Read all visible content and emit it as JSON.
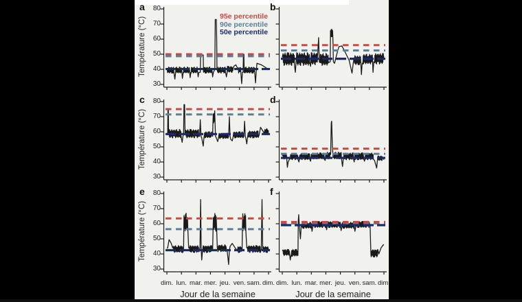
{
  "figure": {
    "panel_letters": [
      "a",
      "b",
      "c",
      "d",
      "e",
      "f"
    ],
    "legend": {
      "items": [
        {
          "label": "95e percentile",
          "color": "#c64a42"
        },
        {
          "label": "90e percentile",
          "color": "#5d7e97"
        },
        {
          "label": "50e percentile",
          "color": "#1c2a66"
        }
      ]
    },
    "axes": {
      "y_label": "Température (°C)",
      "x_label": "Jour de la semaine",
      "y_ticks": [
        80,
        70,
        60,
        50,
        40,
        30
      ],
      "x_tick_labels": [
        "dim.",
        "lun.",
        "mar.",
        "mer.",
        "jeu.",
        "ven.",
        "sam.",
        "dim."
      ],
      "ylim": [
        30,
        80
      ]
    },
    "colors": {
      "p95": "#c64a42",
      "p90": "#5d7e97",
      "p50": "#1c2a66",
      "series": "#1a1a1a",
      "axis": "#1a1a1a",
      "figure_bg": "#f1f1ee",
      "surround": "#000000"
    }
  },
  "chart_data": [
    {
      "id": "a",
      "label": "a",
      "type": "line",
      "ylim": [
        30,
        80
      ],
      "x_unit": "day of week (dim. to dim.)",
      "percentiles": {
        "p95": 50,
        "p90": 48.7,
        "p50": 40.2
      },
      "series": [
        [
          0.0,
          40
        ],
        {
          "b": [
            0.02,
            0.5,
            37.5,
            41.5
          ]
        },
        [
          0.55,
          33.5
        ],
        [
          0.6,
          38
        ],
        {
          "b": [
            0.62,
            1.02,
            37.5,
            41.5
          ]
        },
        [
          1.07,
          34
        ],
        [
          1.12,
          38
        ],
        {
          "b": [
            1.14,
            1.55,
            37.5,
            41.5
          ]
        },
        [
          1.6,
          34.5
        ],
        [
          1.65,
          38
        ],
        {
          "b": [
            1.67,
            2.1,
            37.5,
            41.5
          ]
        },
        [
          2.15,
          35
        ],
        [
          2.2,
          38
        ],
        [
          2.3,
          38
        ],
        [
          2.32,
          49.5
        ],
        [
          2.5,
          49.5
        ],
        [
          2.52,
          38
        ],
        {
          "b": [
            2.54,
            3.1,
            37.5,
            41.5
          ]
        },
        [
          3.15,
          35
        ],
        [
          3.2,
          38
        ],
        [
          3.3,
          40
        ],
        [
          3.33,
          73
        ],
        [
          3.4,
          73
        ],
        [
          3.43,
          60
        ],
        [
          3.45,
          40
        ],
        {
          "b": [
            3.5,
            4.05,
            37.5,
            41.5
          ]
        },
        [
          4.1,
          35
        ],
        [
          4.15,
          38
        ],
        {
          "b": [
            4.17,
            4.55,
            38,
            42
          ]
        },
        [
          4.6,
          42
        ],
        [
          4.75,
          43
        ],
        [
          4.9,
          40
        ],
        {
          "b": [
            4.92,
            5.1,
            37.5,
            41.5
          ]
        },
        [
          5.15,
          30.5
        ],
        [
          5.2,
          38
        ],
        [
          5.25,
          38
        ],
        [
          5.27,
          50
        ],
        [
          5.3,
          50
        ],
        [
          5.32,
          38
        ],
        {
          "b": [
            5.35,
            6.05,
            37.5,
            41.5
          ]
        },
        [
          6.1,
          31
        ],
        [
          6.15,
          38
        ],
        [
          6.2,
          44
        ],
        [
          6.5,
          43
        ],
        [
          7.0,
          40
        ]
      ]
    },
    {
      "id": "b",
      "label": "b",
      "type": "line",
      "ylim": [
        30,
        80
      ],
      "x_unit": "day of week (dim. to dim.)",
      "percentiles": {
        "p95": 56,
        "p90": 52.5,
        "p50": 47
      },
      "series": [
        [
          0,
          48
        ],
        {
          "b": [
            0.05,
            0.85,
            42.5,
            51
          ]
        },
        [
          0.9,
          38
        ],
        [
          0.95,
          45
        ],
        {
          "b": [
            1.0,
            1.9,
            42.5,
            51
          ]
        },
        [
          1.95,
          42
        ],
        {
          "b": [
            2.0,
            2.45,
            43,
            51
          ]
        },
        [
          2.5,
          61
        ],
        [
          2.55,
          45
        ],
        {
          "b": [
            2.6,
            3.2,
            42.5,
            50.5
          ]
        },
        [
          3.3,
          45
        ],
        {
          "b": [
            3.32,
            3.5,
            60,
            67
          ]
        },
        [
          3.52,
          45
        ],
        [
          3.6,
          44
        ],
        [
          3.75,
          50
        ],
        [
          3.9,
          55
        ],
        [
          4.1,
          55.5
        ],
        [
          4.3,
          52
        ],
        [
          4.5,
          48
        ],
        [
          4.6,
          46
        ],
        [
          4.8,
          37.5
        ],
        [
          4.9,
          45
        ],
        {
          "b": [
            4.95,
            5.4,
            43,
            49
          ]
        },
        [
          5.45,
          36.5
        ],
        [
          5.5,
          44
        ],
        {
          "b": [
            5.55,
            6.2,
            43.5,
            50
          ]
        },
        [
          6.25,
          38
        ],
        [
          6.3,
          45
        ],
        {
          "b": [
            6.35,
            6.95,
            43.5,
            50.5
          ]
        },
        [
          7,
          47
        ]
      ]
    },
    {
      "id": "c",
      "label": "c",
      "type": "line",
      "ylim": [
        30,
        80
      ],
      "x_unit": "day of week (dim. to dim.)",
      "percentiles": {
        "p95": 75,
        "p90": 71.5,
        "p50": 58.5
      },
      "series": [
        [
          0,
          58
        ],
        [
          0.05,
          58
        ],
        [
          0.07,
          75
        ],
        [
          0.1,
          75
        ],
        [
          0.12,
          58
        ],
        {
          "b": [
            0.14,
            1.0,
            56,
            61.5
          ]
        },
        [
          1.05,
          53
        ],
        [
          1.1,
          57
        ],
        [
          1.15,
          58
        ],
        [
          1.18,
          78
        ],
        [
          1.22,
          78
        ],
        [
          1.25,
          58
        ],
        {
          "b": [
            1.3,
            2.2,
            56,
            61.5
          ]
        },
        [
          2.25,
          57
        ],
        [
          2.3,
          68
        ],
        [
          2.35,
          57
        ],
        [
          2.4,
          56
        ],
        [
          2.5,
          50.5
        ],
        [
          2.55,
          56
        ],
        {
          "b": [
            2.6,
            3.1,
            56,
            60
          ]
        },
        [
          3.15,
          57
        ],
        {
          "b": [
            3.17,
            3.32,
            65,
            74
          ]
        },
        [
          3.35,
          57
        ],
        [
          3.4,
          56
        ],
        [
          3.5,
          53.5
        ],
        [
          3.55,
          56
        ],
        {
          "b": [
            3.6,
            4.2,
            55.5,
            59
          ]
        },
        [
          4.25,
          57
        ],
        [
          4.3,
          70
        ],
        [
          4.35,
          57
        ],
        [
          4.4,
          55
        ],
        [
          4.5,
          54
        ],
        [
          4.55,
          56
        ],
        {
          "b": [
            4.6,
            5.25,
            56,
            60
          ]
        },
        [
          5.3,
          57
        ],
        [
          5.35,
          67
        ],
        [
          5.4,
          57
        ],
        [
          5.45,
          55
        ],
        [
          5.5,
          52
        ],
        [
          5.55,
          56
        ],
        {
          "b": [
            5.6,
            6.3,
            56,
            60.5
          ]
        },
        [
          6.35,
          58
        ],
        [
          6.45,
          63
        ],
        [
          6.7,
          59
        ],
        {
          "b": [
            6.75,
            7,
            58,
            62
          ]
        }
      ]
    },
    {
      "id": "d",
      "label": "d",
      "type": "line",
      "ylim": [
        30,
        80
      ],
      "x_unit": "day of week (dim. to dim.)",
      "percentiles": {
        "p95": 48.8,
        "p90": 45.4,
        "p50": 42.7
      },
      "series": [
        [
          0,
          44
        ],
        {
          "b": [
            0.05,
            0.3,
            42,
            45.5
          ]
        },
        [
          0.35,
          36.5
        ],
        [
          0.4,
          40
        ],
        [
          0.5,
          42
        ],
        {
          "b": [
            0.55,
            1.1,
            41.5,
            45.5
          ]
        },
        [
          1.15,
          40
        ],
        {
          "b": [
            1.2,
            1.9,
            41.5,
            45.5
          ]
        },
        [
          1.95,
          40.5
        ],
        {
          "b": [
            2.0,
            2.9,
            42,
            46
          ]
        },
        [
          2.95,
          41
        ],
        {
          "b": [
            3.0,
            3.3,
            42,
            46.5
          ]
        },
        [
          3.33,
          45
        ],
        [
          3.37,
          66
        ],
        [
          3.4,
          67
        ],
        [
          3.45,
          50
        ],
        [
          3.5,
          43
        ],
        {
          "b": [
            3.55,
            4.1,
            42,
            46.5
          ]
        },
        [
          4.15,
          37
        ],
        [
          4.2,
          42
        ],
        {
          "b": [
            4.25,
            4.9,
            41.5,
            46
          ]
        },
        [
          4.95,
          40
        ],
        {
          "b": [
            5.0,
            5.6,
            41.5,
            46
          ]
        },
        [
          5.65,
          40.5
        ],
        {
          "b": [
            5.7,
            6.3,
            41.5,
            46
          ]
        },
        [
          6.35,
          41
        ],
        [
          6.5,
          36
        ],
        [
          6.55,
          41
        ],
        {
          "b": [
            6.6,
            6.9,
            41,
            44
          ]
        },
        [
          7,
          41.5
        ]
      ]
    },
    {
      "id": "e",
      "label": "e",
      "type": "line",
      "ylim": [
        30,
        80
      ],
      "x_unit": "day of week (dim. to dim.)",
      "percentiles": {
        "p95": 63.5,
        "p90": 56.4,
        "p50": 42.5
      },
      "series": [
        [
          0,
          44
        ],
        [
          0.05,
          44
        ],
        [
          0.15,
          49.5
        ],
        [
          0.3,
          47
        ],
        [
          0.4,
          44
        ],
        {
          "b": [
            0.45,
            1.1,
            41,
            45.5
          ]
        },
        [
          1.15,
          43
        ],
        {
          "b": [
            1.18,
            1.45,
            55,
            67
          ]
        },
        [
          1.5,
          44
        ],
        {
          "b": [
            1.55,
            2.2,
            41,
            45.5
          ]
        },
        [
          2.28,
          44
        ],
        [
          2.32,
          76
        ],
        [
          2.36,
          44
        ],
        [
          2.4,
          36
        ],
        [
          2.45,
          42
        ],
        {
          "b": [
            2.5,
            3.1,
            41,
            45.5
          ]
        },
        [
          3.15,
          43
        ],
        {
          "b": [
            3.18,
            3.42,
            55,
            67
          ]
        },
        [
          3.47,
          44
        ],
        {
          "b": [
            3.52,
            4.1,
            41.5,
            46
          ]
        },
        [
          4.15,
          42
        ],
        [
          4.25,
          33
        ],
        [
          4.3,
          42
        ],
        [
          4.35,
          45
        ],
        [
          4.5,
          47
        ],
        [
          4.7,
          44
        ],
        [
          4.85,
          42
        ],
        {
          "b": [
            4.9,
            5.15,
            41,
            45
          ]
        },
        [
          5.18,
          43
        ],
        {
          "b": [
            5.2,
            5.45,
            55,
            67
          ]
        },
        [
          5.5,
          44
        ],
        {
          "b": [
            5.55,
            6.45,
            41,
            45.5
          ]
        },
        [
          6.5,
          43
        ],
        [
          6.55,
          76
        ],
        [
          6.6,
          43
        ],
        {
          "b": [
            6.65,
            6.95,
            41,
            45
          ]
        },
        [
          7,
          43
        ]
      ]
    },
    {
      "id": "f",
      "label": "f",
      "type": "line",
      "ylim": [
        30,
        80
      ],
      "x_unit": "day of week (dim. to dim.)",
      "percentiles": {
        "p95": 61.2,
        "p90": 60.2,
        "p50": 59.1
      },
      "series": [
        [
          0,
          42
        ],
        {
          "b": [
            0.05,
            0.5,
            39,
            43
          ]
        },
        [
          0.55,
          36
        ],
        [
          0.6,
          39
        ],
        {
          "b": [
            0.62,
            1.05,
            38.5,
            43
          ]
        },
        [
          1.08,
          39
        ],
        [
          1.1,
          62
        ],
        [
          1.13,
          66
        ],
        [
          1.18,
          58
        ],
        [
          1.25,
          50
        ],
        [
          1.3,
          58
        ],
        {
          "b": [
            1.35,
            2.0,
            57,
            61
          ]
        },
        [
          2.05,
          55
        ],
        {
          "b": [
            2.1,
            3.0,
            57.5,
            61.5
          ]
        },
        [
          3.05,
          56
        ],
        {
          "b": [
            3.1,
            4.0,
            57.5,
            61.5
          ]
        },
        [
          4.05,
          55.5
        ],
        {
          "b": [
            4.1,
            4.95,
            57,
            61
          ]
        },
        [
          5.0,
          55
        ],
        {
          "b": [
            5.05,
            6.0,
            57.5,
            61.5
          ]
        },
        [
          6.05,
          58
        ],
        [
          6.1,
          40
        ],
        {
          "b": [
            6.12,
            6.6,
            38,
            43
          ]
        },
        [
          6.65,
          40
        ],
        [
          6.8,
          44
        ],
        [
          6.95,
          46
        ],
        [
          7,
          46
        ]
      ]
    }
  ]
}
